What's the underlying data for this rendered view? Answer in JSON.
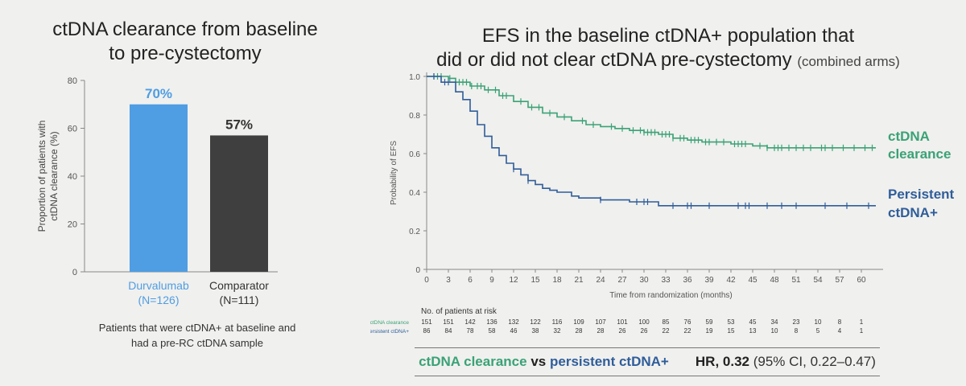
{
  "left": {
    "title_line1": "ctDNA clearance from baseline",
    "title_line2": "to pre-cystectomy",
    "caption_line1": "Patients that were ctDNA+ at baseline and",
    "caption_line2": "had a pre-RC ctDNA sample",
    "chart_data": {
      "type": "bar",
      "ylabel_line1": "Proportion of patients with",
      "ylabel_line2": "ctDNA clearance (%)",
      "ylim": [
        0,
        80
      ],
      "yticks": [
        "0",
        "20",
        "40",
        "60",
        "80"
      ],
      "categories": [
        {
          "name": "Durvalumab",
          "n": "(N=126)",
          "value": 70,
          "label": "70%",
          "color": "#4f9de3",
          "text_color": "#4f9de3"
        },
        {
          "name": "Comparator",
          "n": "(N=111)",
          "value": 57,
          "label": "57%",
          "color": "#3f3f3f",
          "text_color": "#333333"
        }
      ]
    }
  },
  "right": {
    "title_line1": "EFS in the baseline ctDNA+ population that",
    "title_line2_main": "did or did not clear ctDNA pre-cystectomy",
    "title_line2_small": "(combined arms)",
    "hr": {
      "s1": "ctDNA clearance",
      "vs": "vs",
      "s2": "persistent ctDNA+",
      "hr_label": "HR, 0.32",
      "ci": "(95% CI, 0.22–0.47)"
    },
    "chart_data": {
      "type": "line",
      "ylabel": "Probability of EFS",
      "xlabel": "Time from randomization (months)",
      "xlim": [
        0,
        63
      ],
      "ylim": [
        0,
        1.0
      ],
      "xticks": [
        "0",
        "3",
        "6",
        "9",
        "12",
        "15",
        "18",
        "21",
        "24",
        "27",
        "30",
        "33",
        "36",
        "39",
        "42",
        "45",
        "48",
        "51",
        "54",
        "57",
        "60"
      ],
      "yticks": [
        "0",
        "0.2",
        "0.4",
        "0.6",
        "0.8",
        "1.0"
      ],
      "series": [
        {
          "name": "ctDNA clearance",
          "label_line1": "ctDNA",
          "label_line2": "clearance",
          "color": "#3aa276",
          "points": [
            [
              0,
              1.0
            ],
            [
              3,
              0.99
            ],
            [
              4,
              0.97
            ],
            [
              6,
              0.95
            ],
            [
              8,
              0.93
            ],
            [
              10,
              0.9
            ],
            [
              12,
              0.87
            ],
            [
              14,
              0.84
            ],
            [
              16,
              0.81
            ],
            [
              18,
              0.79
            ],
            [
              20,
              0.77
            ],
            [
              22,
              0.75
            ],
            [
              24,
              0.74
            ],
            [
              26,
              0.73
            ],
            [
              28,
              0.72
            ],
            [
              30,
              0.71
            ],
            [
              32,
              0.7
            ],
            [
              34,
              0.68
            ],
            [
              36,
              0.67
            ],
            [
              38,
              0.66
            ],
            [
              42,
              0.65
            ],
            [
              45,
              0.64
            ],
            [
              47,
              0.63
            ],
            [
              62,
              0.63
            ]
          ],
          "censors": [
            1,
            1.5,
            2,
            3.2,
            4.5,
            5,
            5.5,
            6.2,
            7,
            7.5,
            8.5,
            9.5,
            10.5,
            11,
            13,
            14.5,
            15.5,
            17,
            19,
            21.5,
            23,
            25.5,
            27,
            28.5,
            29.5,
            30,
            30.5,
            31,
            31.5,
            32.5,
            33,
            33.5,
            34,
            35,
            35.5,
            36.5,
            37,
            37.5,
            38.5,
            39,
            40,
            41,
            42.5,
            43,
            43.5,
            44,
            46,
            47,
            48,
            48.5,
            49,
            50,
            51,
            52,
            53,
            54.5,
            55,
            56,
            57.5,
            59,
            60.5,
            61.5
          ]
        },
        {
          "name": "Persistent ctDNA+",
          "label_line1": "Persistent",
          "label_line2": "ctDNA+",
          "color": "#2f5d9a",
          "points": [
            [
              0,
              1.0
            ],
            [
              2,
              0.97
            ],
            [
              4,
              0.92
            ],
            [
              5,
              0.88
            ],
            [
              6,
              0.82
            ],
            [
              7,
              0.75
            ],
            [
              8,
              0.69
            ],
            [
              9,
              0.63
            ],
            [
              10,
              0.59
            ],
            [
              11,
              0.55
            ],
            [
              12,
              0.52
            ],
            [
              13,
              0.49
            ],
            [
              14,
              0.46
            ],
            [
              15,
              0.44
            ],
            [
              16,
              0.42
            ],
            [
              17,
              0.41
            ],
            [
              18,
              0.4
            ],
            [
              20,
              0.38
            ],
            [
              21,
              0.37
            ],
            [
              24,
              0.36
            ],
            [
              28,
              0.35
            ],
            [
              32,
              0.33
            ],
            [
              62,
              0.33
            ]
          ],
          "censors": [
            1,
            2.5,
            3,
            12,
            14,
            24,
            29,
            30,
            30.5,
            34,
            36,
            36.5,
            39,
            43,
            44,
            44.5,
            47,
            49,
            51,
            55,
            58,
            61
          ]
        }
      ],
      "risk_table": {
        "header": "No. of patients at risk",
        "rows": [
          {
            "label": "ctDNA clearance",
            "color": "#3aa276",
            "values": [
              "151",
              "151",
              "142",
              "136",
              "132",
              "122",
              "116",
              "109",
              "107",
              "101",
              "100",
              "85",
              "76",
              "59",
              "53",
              "45",
              "34",
              "23",
              "10",
              "8",
              "1"
            ]
          },
          {
            "label": "Persistent ctDNA+",
            "color": "#2f5d9a",
            "values": [
              "86",
              "84",
              "78",
              "58",
              "46",
              "38",
              "32",
              "28",
              "28",
              "26",
              "26",
              "22",
              "22",
              "19",
              "15",
              "13",
              "10",
              "8",
              "5",
              "4",
              "1"
            ]
          }
        ]
      }
    }
  }
}
